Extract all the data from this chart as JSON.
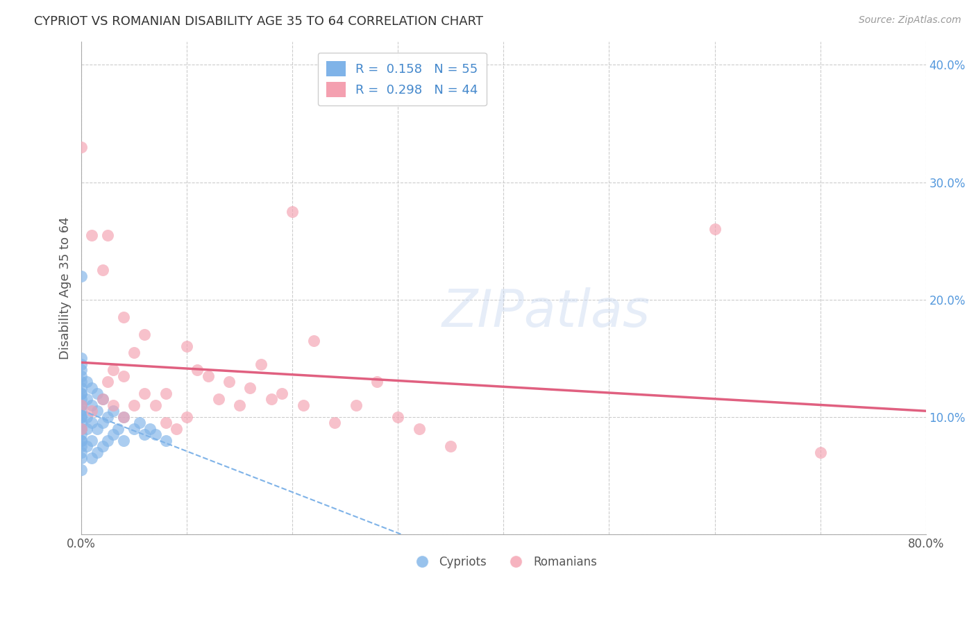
{
  "title": "CYPRIOT VS ROMANIAN DISABILITY AGE 35 TO 64 CORRELATION CHART",
  "source": "Source: ZipAtlas.com",
  "ylabel": "Disability Age 35 to 64",
  "xlim": [
    0.0,
    0.8
  ],
  "ylim": [
    0.0,
    0.42
  ],
  "xticks": [
    0.0,
    0.1,
    0.2,
    0.3,
    0.4,
    0.5,
    0.6,
    0.7,
    0.8
  ],
  "xticklabels": [
    "0.0%",
    "",
    "",
    "",
    "",
    "",
    "",
    "",
    "80.0%"
  ],
  "yticks": [
    0.0,
    0.1,
    0.2,
    0.3,
    0.4
  ],
  "yticklabels": [
    "",
    "10.0%",
    "20.0%",
    "30.0%",
    "40.0%"
  ],
  "grid_color": "#cccccc",
  "background_color": "#ffffff",
  "cypriot_R": 0.158,
  "cypriot_N": 55,
  "romanian_R": 0.298,
  "romanian_N": 44,
  "cypriot_color": "#7fb3e8",
  "romanian_color": "#f4a0b0",
  "cypriot_trend_color": "#7fb3e8",
  "romanian_trend_color": "#e06080",
  "cypriot_x": [
    0.0,
    0.0,
    0.0,
    0.0,
    0.0,
    0.0,
    0.0,
    0.0,
    0.0,
    0.0,
    0.0,
    0.0,
    0.0,
    0.0,
    0.0,
    0.0,
    0.0,
    0.0,
    0.0,
    0.0,
    0.0,
    0.0,
    0.0,
    0.0,
    0.0,
    0.005,
    0.005,
    0.005,
    0.005,
    0.005,
    0.01,
    0.01,
    0.01,
    0.01,
    0.01,
    0.015,
    0.015,
    0.015,
    0.015,
    0.02,
    0.02,
    0.02,
    0.025,
    0.025,
    0.03,
    0.03,
    0.035,
    0.04,
    0.04,
    0.05,
    0.055,
    0.06,
    0.065,
    0.07,
    0.08
  ],
  "cypriot_y": [
    0.055,
    0.065,
    0.07,
    0.075,
    0.08,
    0.08,
    0.085,
    0.09,
    0.09,
    0.095,
    0.1,
    0.1,
    0.105,
    0.11,
    0.11,
    0.115,
    0.12,
    0.12,
    0.125,
    0.13,
    0.135,
    0.14,
    0.145,
    0.15,
    0.22,
    0.075,
    0.09,
    0.1,
    0.115,
    0.13,
    0.065,
    0.08,
    0.095,
    0.11,
    0.125,
    0.07,
    0.09,
    0.105,
    0.12,
    0.075,
    0.095,
    0.115,
    0.08,
    0.1,
    0.085,
    0.105,
    0.09,
    0.08,
    0.1,
    0.09,
    0.095,
    0.085,
    0.09,
    0.085,
    0.08
  ],
  "romanian_x": [
    0.0,
    0.0,
    0.0,
    0.01,
    0.01,
    0.02,
    0.02,
    0.025,
    0.025,
    0.03,
    0.03,
    0.04,
    0.04,
    0.04,
    0.05,
    0.05,
    0.06,
    0.06,
    0.07,
    0.08,
    0.08,
    0.09,
    0.1,
    0.1,
    0.11,
    0.12,
    0.13,
    0.14,
    0.15,
    0.16,
    0.17,
    0.18,
    0.19,
    0.2,
    0.21,
    0.22,
    0.24,
    0.26,
    0.28,
    0.3,
    0.32,
    0.35,
    0.6,
    0.7
  ],
  "romanian_y": [
    0.09,
    0.11,
    0.33,
    0.105,
    0.255,
    0.115,
    0.225,
    0.13,
    0.255,
    0.11,
    0.14,
    0.1,
    0.135,
    0.185,
    0.155,
    0.11,
    0.12,
    0.17,
    0.11,
    0.095,
    0.12,
    0.09,
    0.1,
    0.16,
    0.14,
    0.135,
    0.115,
    0.13,
    0.11,
    0.125,
    0.145,
    0.115,
    0.12,
    0.275,
    0.11,
    0.165,
    0.095,
    0.11,
    0.13,
    0.1,
    0.09,
    0.075,
    0.26,
    0.07
  ]
}
